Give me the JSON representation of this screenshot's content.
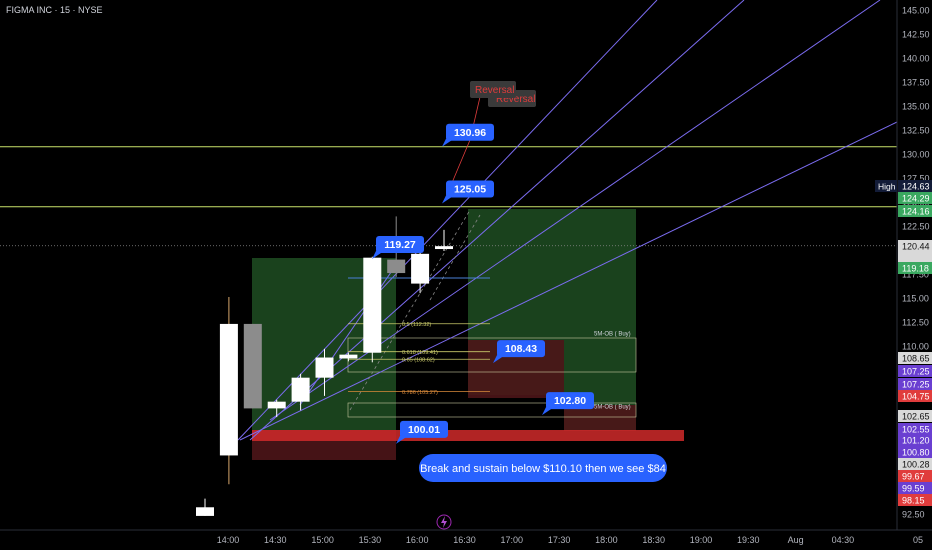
{
  "header": {
    "title": "FIGMA INC · 15 · NYSE"
  },
  "colors": {
    "background": "#000000",
    "candle_bull": "#ffffff",
    "candle_neutral": "#8c8c8c",
    "yellow_line": "#c9e36a",
    "purple_line": "#7b6cf0",
    "green_zone": "#1f4d22",
    "red_zone": "#4d1518",
    "callout_blue": "#2962ff",
    "axis_text": "#b2b5be"
  },
  "chart_data": {
    "type": "candlestick",
    "price_axis": {
      "min": 92.5,
      "max": 145.0,
      "step": 2.5,
      "ticks": [
        "145.00",
        "142.50",
        "140.00",
        "137.50",
        "135.00",
        "132.50",
        "130.00",
        "127.50",
        "125.00",
        "122.50",
        "120.00",
        "117.50",
        "115.00",
        "112.50",
        "110.00",
        "107.50",
        "105.00",
        "102.50",
        "100.00",
        "97.50",
        "95.00",
        "92.50"
      ]
    },
    "time_axis": {
      "ticks": [
        "14:00",
        "14:30",
        "15:00",
        "15:30",
        "16:00",
        "16:30",
        "17:00",
        "17:30",
        "18:00",
        "18:30",
        "19:00",
        "19:30",
        "Aug",
        "04:30",
        "05"
      ]
    },
    "candles": [
      {
        "t": "13:45",
        "o": 93.2,
        "h": 94.1,
        "l": 92.3,
        "c": 92.3
      },
      {
        "t": "14:00",
        "o": 98.6,
        "h": 115.1,
        "l": 95.6,
        "c": 112.3
      },
      {
        "t": "14:15",
        "o": 112.3,
        "h": 112.3,
        "l": 103.5,
        "c": 103.5
      },
      {
        "t": "14:30",
        "o": 103.5,
        "h": 104.4,
        "l": 102.6,
        "c": 104.2
      },
      {
        "t": "14:45",
        "o": 104.2,
        "h": 107.1,
        "l": 103.3,
        "c": 106.7
      },
      {
        "t": "15:00",
        "o": 106.7,
        "h": 109.7,
        "l": 104.8,
        "c": 108.8
      },
      {
        "t": "15:15",
        "o": 108.7,
        "h": 109.3,
        "l": 108.4,
        "c": 109.1
      },
      {
        "t": "15:30",
        "o": 109.3,
        "h": 119.3,
        "l": 108.3,
        "c": 119.2
      },
      {
        "t": "15:45",
        "o": 119.0,
        "h": 123.5,
        "l": 117.2,
        "c": 117.6
      },
      {
        "t": "16:00",
        "o": 116.5,
        "h": 119.8,
        "l": 115.5,
        "c": 119.6
      },
      {
        "t": "16:15",
        "o": 120.1,
        "h": 122.1,
        "l": 119.9,
        "c": 120.4
      }
    ],
    "horizontal_lines": [
      {
        "price": 130.75,
        "color": "yellow"
      },
      {
        "price": 124.5,
        "color": "yellow"
      },
      {
        "price": 120.44,
        "color": "white-dotted"
      }
    ],
    "price_markers": [
      {
        "price": 124.63,
        "text": "124.63",
        "color": "#131c38",
        "tag": "High"
      },
      {
        "price": 124.29,
        "text": "124.29",
        "color": "#3aa860"
      },
      {
        "price": 124.16,
        "text": "124.16",
        "color": "#3aa860"
      },
      {
        "price": 120.44,
        "text": "120.44",
        "color": "#d9d9d9"
      },
      {
        "price": 119.18,
        "text": "119.18",
        "color": "#3aa860"
      },
      {
        "price": 108.65,
        "text": "108.65",
        "color": "#d9d9d9"
      },
      {
        "price": 107.25,
        "text": "107.25",
        "color": "#6a3fd1"
      },
      {
        "price": 107.25,
        "text": "107.25",
        "color": "#6a3fd1"
      },
      {
        "price": 104.75,
        "text": "104.75",
        "color": "#e03c3c"
      },
      {
        "price": 102.65,
        "text": "102.65",
        "color": "#d9d9d9"
      },
      {
        "price": 102.55,
        "text": "102.55",
        "color": "#6a3fd1"
      },
      {
        "price": 101.2,
        "text": "101.20",
        "color": "#6a3fd1"
      },
      {
        "price": 100.8,
        "text": "100.80",
        "color": "#6a3fd1"
      },
      {
        "price": 100.28,
        "text": "100.28",
        "color": "#d9d9d9"
      },
      {
        "price": 99.67,
        "text": "99.67",
        "color": "#e03c3c"
      },
      {
        "price": 99.59,
        "text": "99.59",
        "color": "#6a3fd1"
      },
      {
        "price": 98.15,
        "text": "98.15",
        "color": "#e03c3c"
      }
    ],
    "fib_levels": [
      {
        "price": 112.32,
        "text": "0.5 (112.32)"
      },
      {
        "price": 109.41,
        "text": "0.618 (109.41)"
      },
      {
        "price": 108.62,
        "text": "0.65 (108.62)"
      },
      {
        "price": 105.27,
        "text": "0.786 (105.27)"
      }
    ],
    "order_blocks": [
      {
        "text": "5M-OB ( Buy)",
        "top": 110.8,
        "bottom": 107.3
      },
      {
        "text": "5M-OB ( Buy)",
        "top": 103.2,
        "bottom": 101.6
      }
    ],
    "callouts": [
      {
        "text": "130.96",
        "price": 130.96
      },
      {
        "text": "125.05",
        "price": 125.05
      },
      {
        "text": "119.27",
        "price": 119.27
      },
      {
        "text": "108.43",
        "price": 108.43
      },
      {
        "text": "102.80",
        "price": 102.8
      },
      {
        "text": "100.01",
        "price": 100.01
      }
    ],
    "annotations": {
      "reversal": "Reversal",
      "reversal_shadow": "Reversal",
      "note": "Break and sustain below $110.10 then we see $84"
    }
  }
}
